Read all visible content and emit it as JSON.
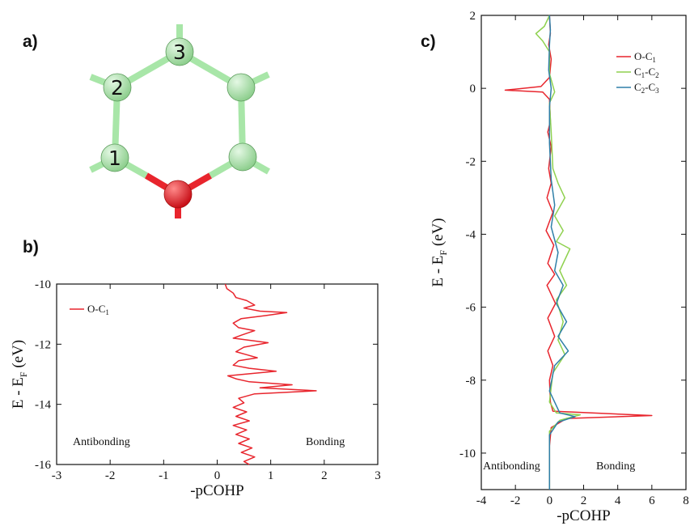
{
  "panels": {
    "a": "a)",
    "b": "b)",
    "c": "c)"
  },
  "molecule": {
    "atom_labels": [
      "1",
      "2",
      "3"
    ],
    "carbon_color": "#a8e6a8",
    "oxygen_color": "#e8252d"
  },
  "colors": {
    "oc1": "#e8252d",
    "c1c2": "#8fd14f",
    "c2c3": "#2f7fa8"
  },
  "chart_data": [
    {
      "type": "line",
      "panel": "b",
      "orientation": "vertical",
      "xlabel": "-pCOHP",
      "ylabel": "E - E_F (eV)",
      "ylabel_parts": {
        "main": "E - E",
        "sub": "F",
        "unit": " (eV)"
      },
      "xlim": [
        -3,
        3
      ],
      "ylim": [
        -16,
        -10
      ],
      "xticks": [
        "-3",
        "-2",
        "-1",
        "0",
        "1",
        "2",
        "3"
      ],
      "yticks": [
        "-10",
        "-12",
        "-14",
        "-16"
      ],
      "legend_position": "top-left",
      "annotations": {
        "left": "Antibonding",
        "right": "Bonding"
      },
      "series": [
        {
          "name": "O-C1",
          "name_parts": {
            "main": "O-C",
            "sub": "1"
          },
          "color": "#e8252d",
          "points": [
            [
              0.15,
              -10.0
            ],
            [
              0.18,
              -10.15
            ],
            [
              0.3,
              -10.3
            ],
            [
              0.35,
              -10.45
            ],
            [
              0.55,
              -10.55
            ],
            [
              0.7,
              -10.7
            ],
            [
              0.5,
              -10.8
            ],
            [
              0.8,
              -10.9
            ],
            [
              1.3,
              -10.95
            ],
            [
              0.9,
              -11.05
            ],
            [
              0.45,
              -11.15
            ],
            [
              0.3,
              -11.3
            ],
            [
              0.4,
              -11.45
            ],
            [
              0.7,
              -11.55
            ],
            [
              0.45,
              -11.7
            ],
            [
              0.3,
              -11.8
            ],
            [
              0.95,
              -11.95
            ],
            [
              0.5,
              -12.1
            ],
            [
              0.35,
              -12.25
            ],
            [
              0.55,
              -12.35
            ],
            [
              0.75,
              -12.45
            ],
            [
              0.4,
              -12.55
            ],
            [
              0.3,
              -12.7
            ],
            [
              0.6,
              -12.8
            ],
            [
              1.1,
              -12.9
            ],
            [
              0.2,
              -13.05
            ],
            [
              0.35,
              -13.15
            ],
            [
              0.6,
              -13.25
            ],
            [
              1.4,
              -13.35
            ],
            [
              0.8,
              -13.45
            ],
            [
              1.85,
              -13.55
            ],
            [
              0.7,
              -13.65
            ],
            [
              0.4,
              -13.8
            ],
            [
              0.5,
              -13.95
            ],
            [
              0.3,
              -14.1
            ],
            [
              0.55,
              -14.25
            ],
            [
              0.35,
              -14.4
            ],
            [
              0.6,
              -14.55
            ],
            [
              0.3,
              -14.7
            ],
            [
              0.55,
              -14.85
            ],
            [
              0.35,
              -15.0
            ],
            [
              0.6,
              -15.15
            ],
            [
              0.4,
              -15.3
            ],
            [
              0.65,
              -15.45
            ],
            [
              0.45,
              -15.6
            ],
            [
              0.7,
              -15.75
            ],
            [
              0.5,
              -15.9
            ],
            [
              0.6,
              -16.0
            ]
          ]
        }
      ]
    },
    {
      "type": "line",
      "panel": "c",
      "orientation": "vertical",
      "xlabel": "-pCOHP",
      "ylabel": "E - E_F (eV)",
      "ylabel_parts": {
        "main": "E - E",
        "sub": "F",
        "unit": " (eV)"
      },
      "xlim": [
        -4,
        8
      ],
      "ylim": [
        -11,
        2
      ],
      "xticks": [
        "-4",
        "-2",
        "0",
        "2",
        "4",
        "6",
        "8"
      ],
      "yticks": [
        "2",
        "0",
        "-2",
        "-4",
        "-6",
        "-8",
        "-10"
      ],
      "legend_position": "top-right",
      "annotations": {
        "left": "Antibonding",
        "right": "Bonding"
      },
      "series": [
        {
          "name": "O-C1",
          "name_parts": {
            "main": "O-C",
            "sub": "1",
            "mid": "",
            "sub2": ""
          },
          "color": "#e8252d",
          "points": [
            [
              0.0,
              2.0
            ],
            [
              0.05,
              1.5
            ],
            [
              -0.05,
              1.2
            ],
            [
              0.1,
              0.8
            ],
            [
              0.0,
              0.3
            ],
            [
              -0.5,
              0.05
            ],
            [
              -2.6,
              -0.05
            ],
            [
              -0.4,
              -0.1
            ],
            [
              0.0,
              -0.3
            ],
            [
              0.05,
              -0.9
            ],
            [
              -0.1,
              -1.2
            ],
            [
              0.1,
              -1.6
            ],
            [
              -0.05,
              -2.2
            ],
            [
              0.1,
              -2.6
            ],
            [
              -0.15,
              -3.0
            ],
            [
              0.2,
              -3.4
            ],
            [
              -0.2,
              -3.9
            ],
            [
              0.25,
              -4.3
            ],
            [
              -0.1,
              -4.8
            ],
            [
              0.3,
              -5.1
            ],
            [
              -0.15,
              -5.4
            ],
            [
              0.35,
              -5.9
            ],
            [
              -0.1,
              -6.3
            ],
            [
              0.3,
              -6.8
            ],
            [
              -0.1,
              -7.2
            ],
            [
              0.2,
              -7.6
            ],
            [
              0.0,
              -8.0
            ],
            [
              0.05,
              -8.6
            ],
            [
              0.2,
              -8.85
            ],
            [
              6.0,
              -8.97
            ],
            [
              1.0,
              -9.05
            ],
            [
              0.1,
              -9.3
            ],
            [
              0.0,
              -9.8
            ],
            [
              0.0,
              -11.0
            ]
          ]
        },
        {
          "name": "C1-C2",
          "name_parts": {
            "main": "C",
            "sub": "1",
            "mid": "-C",
            "sub2": "2"
          },
          "color": "#8fd14f",
          "points": [
            [
              0.0,
              2.0
            ],
            [
              -0.3,
              1.7
            ],
            [
              -0.8,
              1.5
            ],
            [
              -0.4,
              1.3
            ],
            [
              0.0,
              1.0
            ],
            [
              0.0,
              0.4
            ],
            [
              0.3,
              -0.1
            ],
            [
              0.0,
              -0.4
            ],
            [
              0.1,
              -1.2
            ],
            [
              0.2,
              -2.2
            ],
            [
              0.5,
              -2.6
            ],
            [
              0.9,
              -3.0
            ],
            [
              0.3,
              -3.5
            ],
            [
              0.8,
              -3.9
            ],
            [
              0.4,
              -4.2
            ],
            [
              1.2,
              -4.4
            ],
            [
              0.6,
              -5.0
            ],
            [
              1.0,
              -5.4
            ],
            [
              0.4,
              -5.8
            ],
            [
              0.8,
              -6.4
            ],
            [
              0.5,
              -6.9
            ],
            [
              0.9,
              -7.3
            ],
            [
              0.2,
              -7.8
            ],
            [
              0.0,
              -8.6
            ],
            [
              0.4,
              -8.9
            ],
            [
              1.8,
              -8.95
            ],
            [
              0.6,
              -9.1
            ],
            [
              0.0,
              -9.4
            ],
            [
              0.0,
              -11.0
            ]
          ]
        },
        {
          "name": "C2-C3",
          "name_parts": {
            "main": "C",
            "sub": "2",
            "mid": "-C",
            "sub2": "3"
          },
          "color": "#2f7fa8",
          "points": [
            [
              0.0,
              2.0
            ],
            [
              0.05,
              1.6
            ],
            [
              0.0,
              1.2
            ],
            [
              -0.05,
              0.5
            ],
            [
              0.1,
              0.0
            ],
            [
              0.0,
              -0.5
            ],
            [
              0.0,
              -1.5
            ],
            [
              0.1,
              -2.5
            ],
            [
              0.3,
              -3.2
            ],
            [
              0.1,
              -3.8
            ],
            [
              0.5,
              -4.5
            ],
            [
              0.3,
              -5.0
            ],
            [
              0.8,
              -5.4
            ],
            [
              0.4,
              -5.9
            ],
            [
              1.0,
              -6.4
            ],
            [
              0.5,
              -6.8
            ],
            [
              1.1,
              -7.2
            ],
            [
              0.3,
              -7.6
            ],
            [
              0.0,
              -8.3
            ],
            [
              0.6,
              -8.9
            ],
            [
              1.5,
              -9.0
            ],
            [
              0.5,
              -9.15
            ],
            [
              0.0,
              -9.5
            ],
            [
              0.0,
              -11.0
            ]
          ]
        }
      ]
    }
  ]
}
